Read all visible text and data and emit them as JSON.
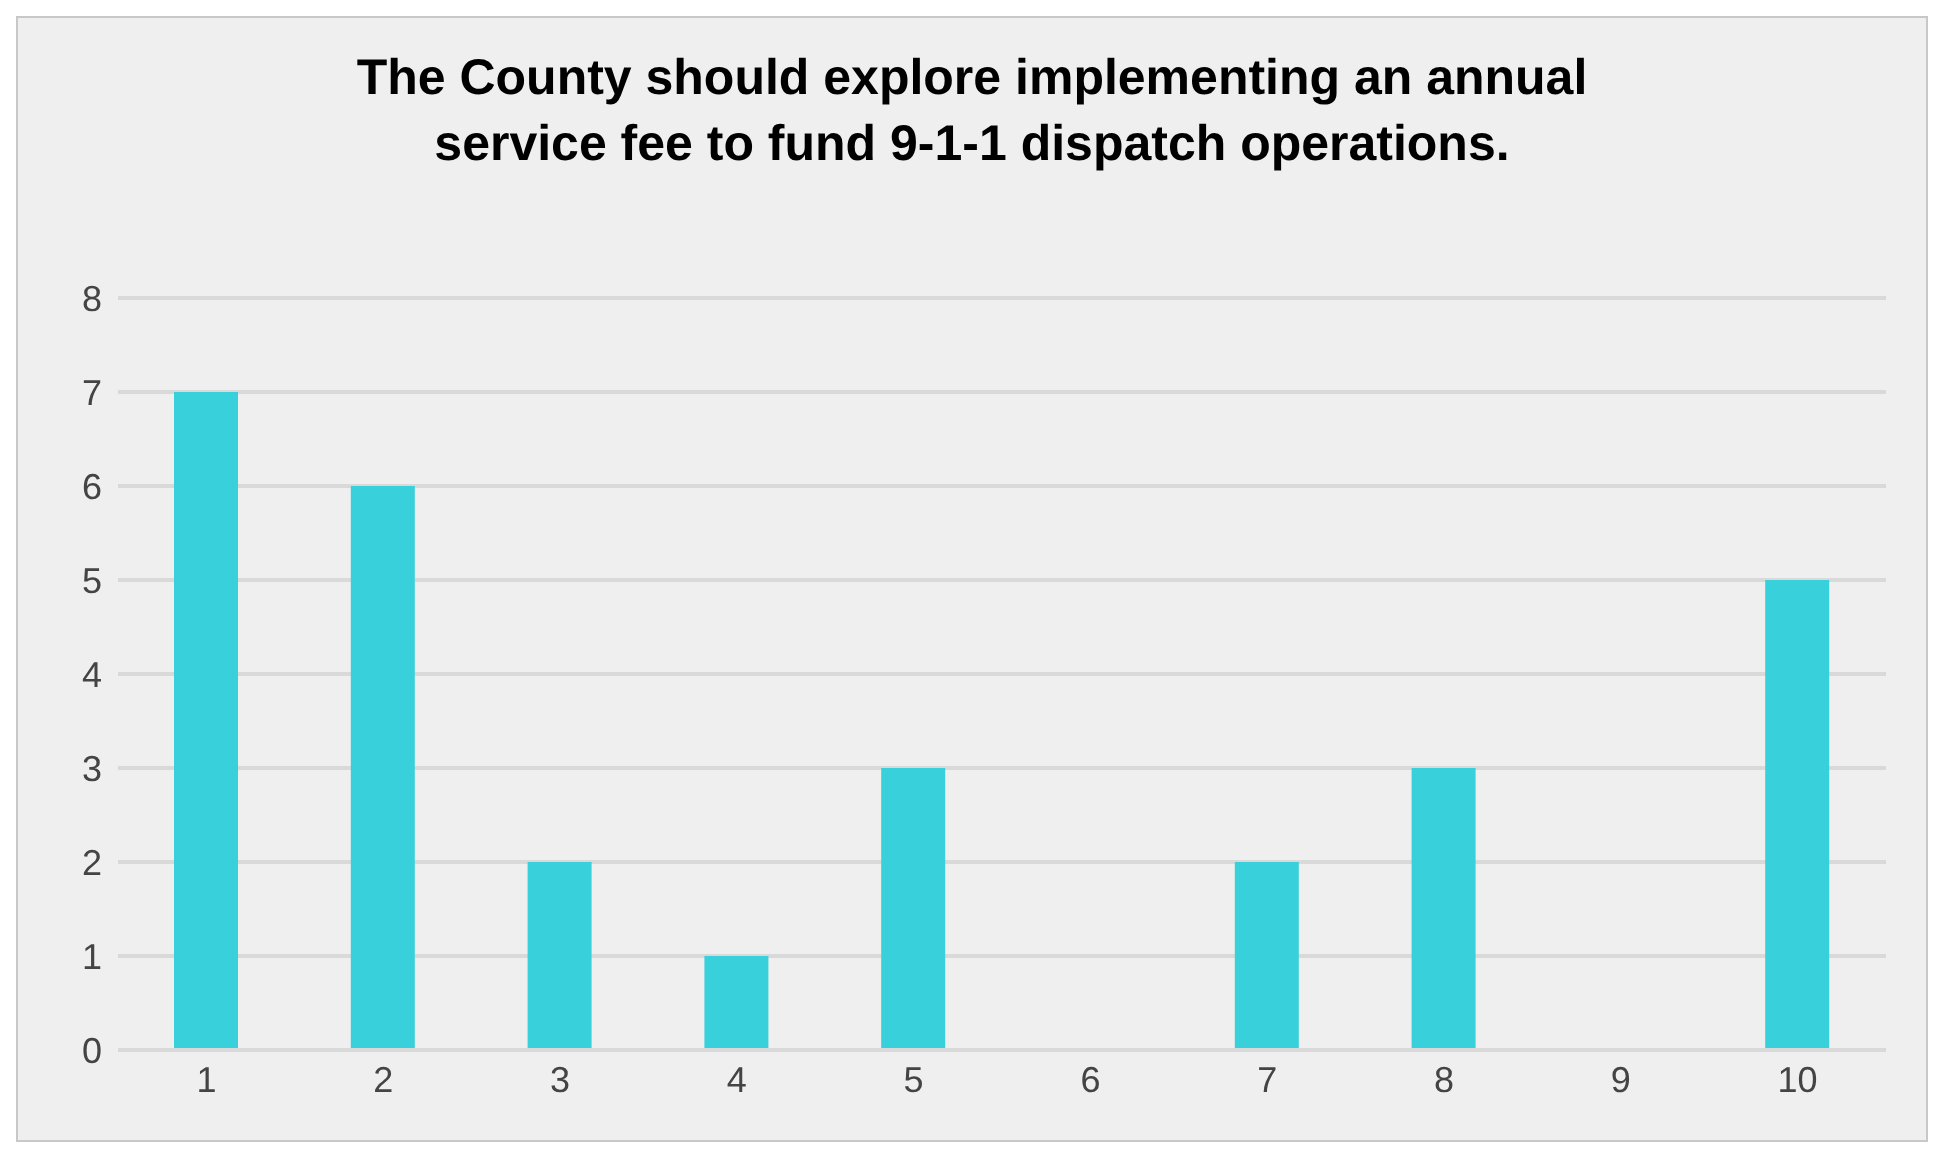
{
  "chart_data": {
    "type": "bar",
    "title": "The County should explore implementing an annual service fee to fund 9-1-1 dispatch operations.",
    "categories": [
      "1",
      "2",
      "3",
      "4",
      "5",
      "6",
      "7",
      "8",
      "9",
      "10"
    ],
    "values": [
      7,
      6,
      2,
      1,
      3,
      0,
      2,
      3,
      0,
      5
    ],
    "color": "#38d0da",
    "ylim": [
      0,
      8
    ],
    "yticks": [
      0,
      1,
      2,
      3,
      4,
      5,
      6,
      7,
      8
    ],
    "grid": "y"
  }
}
